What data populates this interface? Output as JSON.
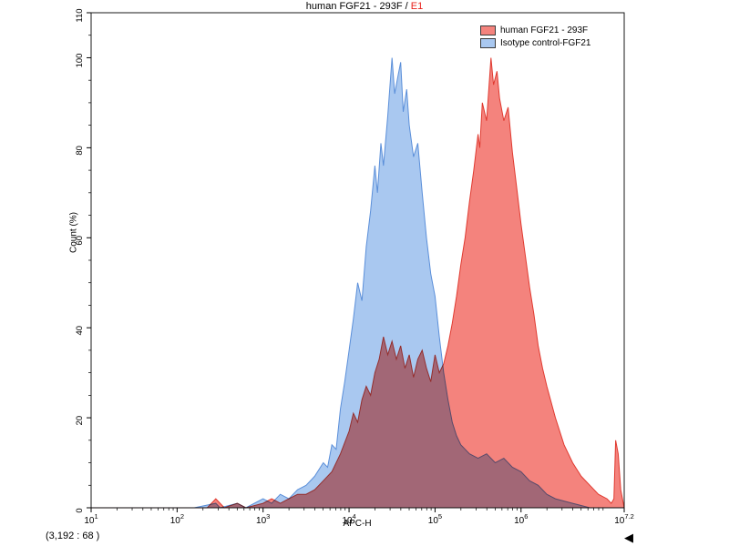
{
  "title": {
    "main": "human FGF21 - 293F / ",
    "highlight": "E1"
  },
  "legend": [
    {
      "label": "human FGF21 - 293F",
      "color": "#f4837d",
      "border": "#3a3a3a"
    },
    {
      "label": "Isotype control-FGF21",
      "color": "#a9c8f0",
      "border": "#3a3a3a"
    }
  ],
  "axes": {
    "x": {
      "label": "APC-H",
      "scale": "log10",
      "min": 1,
      "max": 7.2,
      "tick_exponents": [
        1,
        2,
        3,
        4,
        5,
        6,
        7.2
      ]
    },
    "y": {
      "label": "Count  (%)",
      "min": 0,
      "max": 110,
      "ticks": [
        0,
        20,
        40,
        60,
        80,
        100,
        110
      ]
    }
  },
  "status": {
    "coords": "(3,192  : 68 )"
  },
  "markers": {
    "bottom_right_triangle": "◀"
  },
  "chart_data": {
    "type": "area",
    "title": "human FGF21 - 293F / E1",
    "xlabel": "APC-H",
    "ylabel": "Count (%)",
    "x_scale": "log10",
    "x_range_log10": [
      1,
      7.2
    ],
    "ylim": [
      0,
      110
    ],
    "legend_position": "top-right",
    "grid": false,
    "series": [
      {
        "name": "Isotype control-FGF21",
        "fill": "#a9c8f0",
        "stroke": "#5b8fd9",
        "blend": "normal",
        "points": [
          [
            1.0,
            0
          ],
          [
            2.2,
            0
          ],
          [
            2.45,
            1
          ],
          [
            2.5,
            0
          ],
          [
            2.7,
            1
          ],
          [
            2.8,
            0
          ],
          [
            3.0,
            2
          ],
          [
            3.1,
            1
          ],
          [
            3.2,
            3
          ],
          [
            3.3,
            2
          ],
          [
            3.4,
            4
          ],
          [
            3.5,
            5
          ],
          [
            3.6,
            7
          ],
          [
            3.7,
            10
          ],
          [
            3.75,
            9
          ],
          [
            3.8,
            14
          ],
          [
            3.85,
            13
          ],
          [
            3.9,
            22
          ],
          [
            3.95,
            28
          ],
          [
            4.0,
            35
          ],
          [
            4.05,
            42
          ],
          [
            4.1,
            50
          ],
          [
            4.15,
            46
          ],
          [
            4.2,
            58
          ],
          [
            4.25,
            66
          ],
          [
            4.3,
            76
          ],
          [
            4.33,
            70
          ],
          [
            4.37,
            81
          ],
          [
            4.4,
            76
          ],
          [
            4.45,
            87
          ],
          [
            4.5,
            100
          ],
          [
            4.53,
            92
          ],
          [
            4.57,
            96
          ],
          [
            4.6,
            99
          ],
          [
            4.63,
            88
          ],
          [
            4.67,
            93
          ],
          [
            4.7,
            85
          ],
          [
            4.75,
            78
          ],
          [
            4.8,
            81
          ],
          [
            4.85,
            70
          ],
          [
            4.9,
            60
          ],
          [
            4.95,
            52
          ],
          [
            5.0,
            47
          ],
          [
            5.05,
            38
          ],
          [
            5.1,
            30
          ],
          [
            5.15,
            24
          ],
          [
            5.2,
            19
          ],
          [
            5.25,
            16
          ],
          [
            5.3,
            14
          ],
          [
            5.4,
            12
          ],
          [
            5.5,
            11
          ],
          [
            5.6,
            12
          ],
          [
            5.7,
            10
          ],
          [
            5.8,
            11
          ],
          [
            5.9,
            9
          ],
          [
            6.0,
            8
          ],
          [
            6.1,
            6
          ],
          [
            6.2,
            5
          ],
          [
            6.3,
            3
          ],
          [
            6.4,
            2
          ],
          [
            6.6,
            1
          ],
          [
            6.8,
            0
          ],
          [
            7.2,
            0
          ]
        ]
      },
      {
        "name": "human FGF21 - 293F",
        "fill": "#f4837d",
        "stroke": "#e03a30",
        "blend": "multiply",
        "points": [
          [
            1.0,
            0
          ],
          [
            2.35,
            0
          ],
          [
            2.45,
            2
          ],
          [
            2.55,
            0
          ],
          [
            2.7,
            1
          ],
          [
            2.8,
            0
          ],
          [
            3.0,
            1
          ],
          [
            3.1,
            2
          ],
          [
            3.2,
            1
          ],
          [
            3.3,
            2
          ],
          [
            3.4,
            3
          ],
          [
            3.5,
            3
          ],
          [
            3.6,
            4
          ],
          [
            3.7,
            6
          ],
          [
            3.8,
            8
          ],
          [
            3.9,
            12
          ],
          [
            4.0,
            17
          ],
          [
            4.05,
            21
          ],
          [
            4.1,
            19
          ],
          [
            4.15,
            24
          ],
          [
            4.2,
            27
          ],
          [
            4.25,
            25
          ],
          [
            4.3,
            30
          ],
          [
            4.35,
            33
          ],
          [
            4.4,
            38
          ],
          [
            4.45,
            34
          ],
          [
            4.5,
            37
          ],
          [
            4.55,
            33
          ],
          [
            4.6,
            36
          ],
          [
            4.65,
            31
          ],
          [
            4.7,
            34
          ],
          [
            4.75,
            29
          ],
          [
            4.8,
            33
          ],
          [
            4.85,
            35
          ],
          [
            4.9,
            31
          ],
          [
            4.95,
            28
          ],
          [
            5.0,
            34
          ],
          [
            5.05,
            30
          ],
          [
            5.1,
            32
          ],
          [
            5.15,
            36
          ],
          [
            5.2,
            41
          ],
          [
            5.25,
            47
          ],
          [
            5.3,
            54
          ],
          [
            5.35,
            60
          ],
          [
            5.4,
            68
          ],
          [
            5.45,
            75
          ],
          [
            5.5,
            83
          ],
          [
            5.52,
            80
          ],
          [
            5.55,
            90
          ],
          [
            5.6,
            86
          ],
          [
            5.65,
            100
          ],
          [
            5.68,
            94
          ],
          [
            5.72,
            97
          ],
          [
            5.75,
            91
          ],
          [
            5.8,
            86
          ],
          [
            5.85,
            89
          ],
          [
            5.9,
            79
          ],
          [
            5.95,
            71
          ],
          [
            6.0,
            63
          ],
          [
            6.05,
            56
          ],
          [
            6.1,
            49
          ],
          [
            6.15,
            43
          ],
          [
            6.2,
            36
          ],
          [
            6.25,
            31
          ],
          [
            6.3,
            27
          ],
          [
            6.4,
            20
          ],
          [
            6.5,
            14
          ],
          [
            6.6,
            10
          ],
          [
            6.7,
            7
          ],
          [
            6.8,
            5
          ],
          [
            6.9,
            3
          ],
          [
            7.0,
            2
          ],
          [
            7.05,
            1
          ],
          [
            7.08,
            2
          ],
          [
            7.1,
            15
          ],
          [
            7.13,
            12
          ],
          [
            7.16,
            4
          ],
          [
            7.2,
            0
          ]
        ]
      }
    ]
  }
}
